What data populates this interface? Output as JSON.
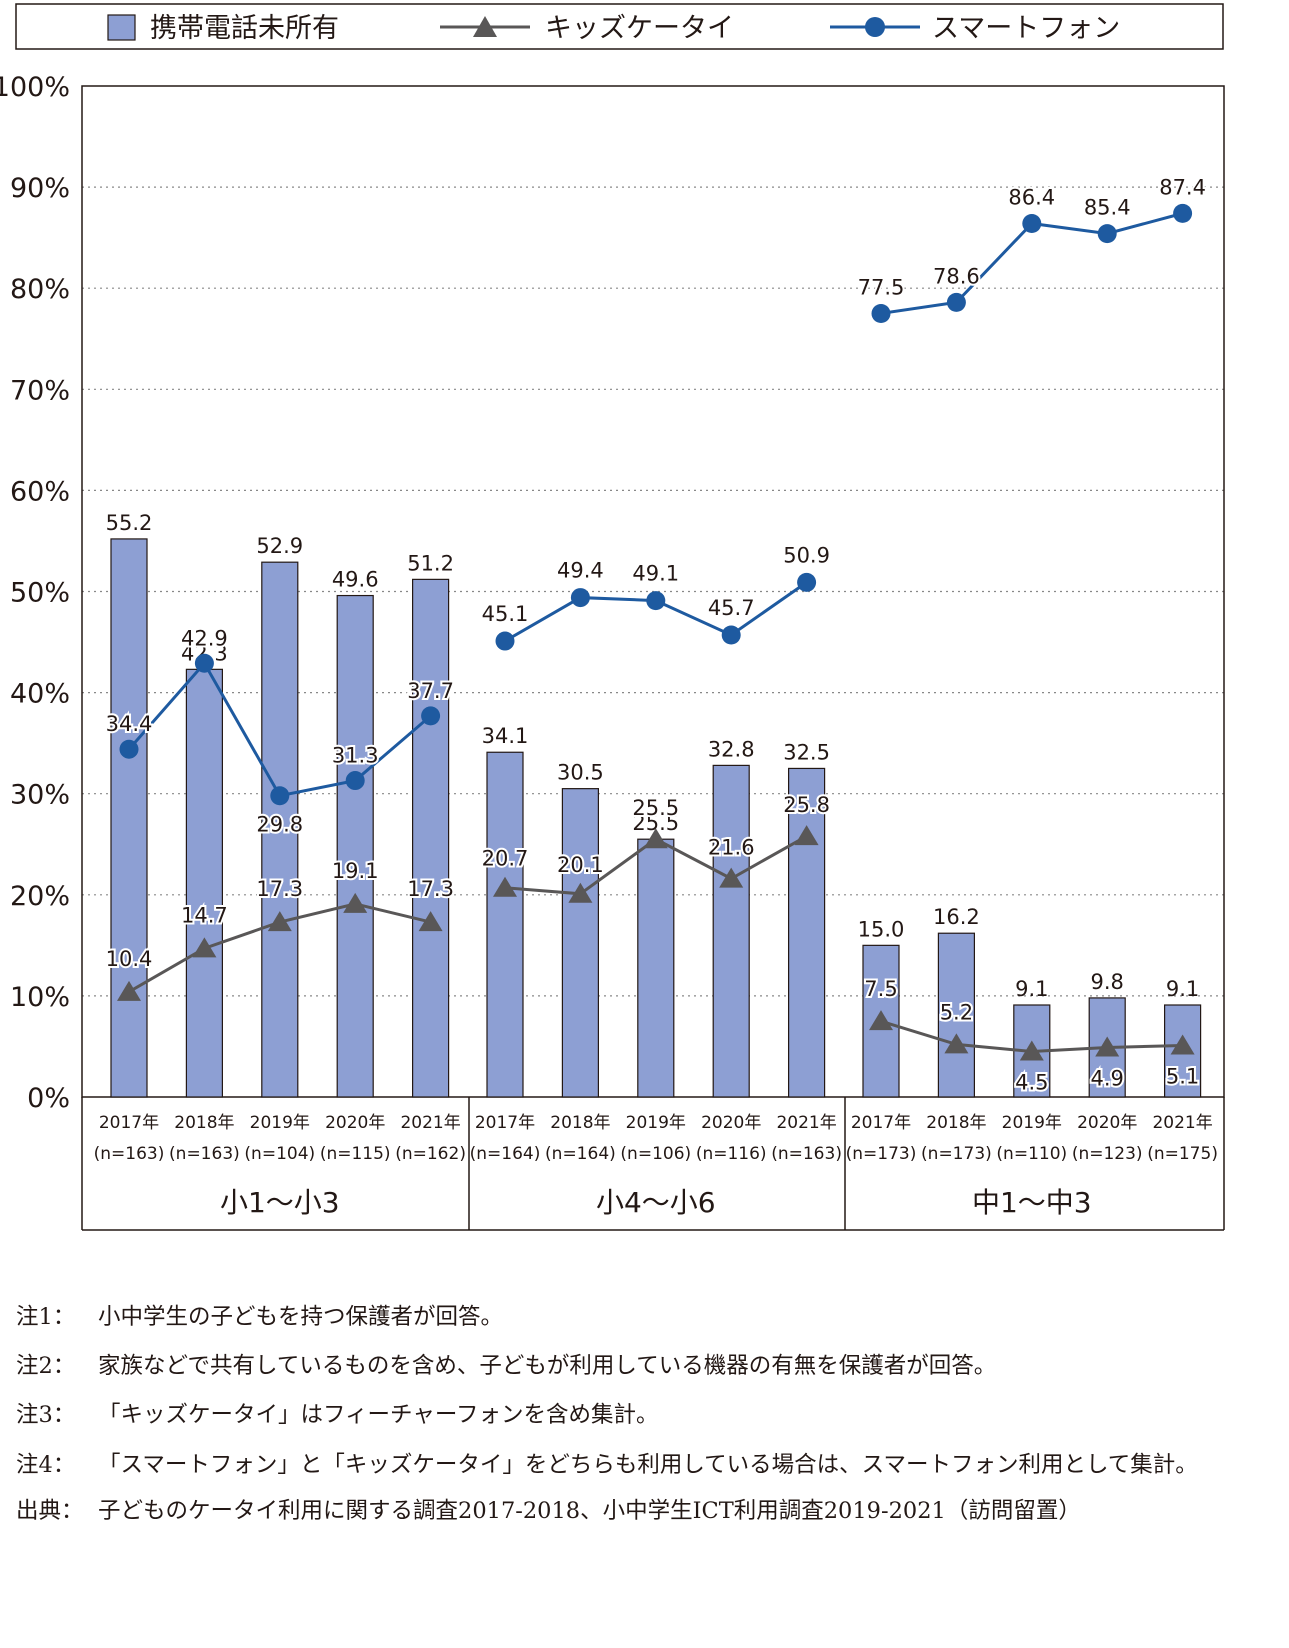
{
  "chart_data": {
    "type": "bar",
    "legend": {
      "position": "top",
      "entries": [
        {
          "key": "no_phone",
          "label": "携帯電話未所有",
          "marker": "square",
          "color": "#8d9fd3"
        },
        {
          "key": "kids_phone",
          "label": "キッズケータイ",
          "marker": "triangle",
          "color": "#595757"
        },
        {
          "key": "smartphone",
          "label": "スマートフォン",
          "marker": "circle",
          "color": "#1e5aa0"
        }
      ]
    },
    "y_axis": {
      "min": 0,
      "max": 100,
      "step": 10,
      "ticks": [
        "0%",
        "10%",
        "20%",
        "30%",
        "40%",
        "50%",
        "60%",
        "70%",
        "80%",
        "90%",
        "100%"
      ],
      "grid": "dotted"
    },
    "groups": [
      {
        "label": "小1〜小3",
        "categories": [
          {
            "year": "2017年",
            "n": "(n=163)"
          },
          {
            "year": "2018年",
            "n": "(n=163)"
          },
          {
            "year": "2019年",
            "n": "(n=104)"
          },
          {
            "year": "2020年",
            "n": "(n=115)"
          },
          {
            "year": "2021年",
            "n": "(n=162)"
          }
        ],
        "no_phone": [
          55.2,
          42.3,
          52.9,
          49.6,
          51.2
        ],
        "kids_phone": [
          10.4,
          14.7,
          17.3,
          19.1,
          17.3
        ],
        "smartphone": [
          34.4,
          42.9,
          29.8,
          31.3,
          37.7
        ]
      },
      {
        "label": "小4〜小6",
        "categories": [
          {
            "year": "2017年",
            "n": "(n=164)"
          },
          {
            "year": "2018年",
            "n": "(n=164)"
          },
          {
            "year": "2019年",
            "n": "(n=106)"
          },
          {
            "year": "2020年",
            "n": "(n=116)"
          },
          {
            "year": "2021年",
            "n": "(n=163)"
          }
        ],
        "no_phone": [
          34.1,
          30.5,
          25.5,
          32.8,
          32.5
        ],
        "kids_phone": [
          20.7,
          20.1,
          25.5,
          21.6,
          25.8
        ],
        "smartphone": [
          45.1,
          49.4,
          49.1,
          45.7,
          50.9
        ]
      },
      {
        "label": "中1〜中3",
        "categories": [
          {
            "year": "2017年",
            "n": "(n=173)"
          },
          {
            "year": "2018年",
            "n": "(n=173)"
          },
          {
            "year": "2019年",
            "n": "(n=110)"
          },
          {
            "year": "2020年",
            "n": "(n=123)"
          },
          {
            "year": "2021年",
            "n": "(n=175)"
          }
        ],
        "no_phone": [
          15.0,
          16.2,
          9.1,
          9.8,
          9.1
        ],
        "kids_phone": [
          7.5,
          5.2,
          4.5,
          4.9,
          5.1
        ],
        "smartphone": [
          77.5,
          78.6,
          86.4,
          85.4,
          87.4
        ]
      }
    ]
  },
  "notes": [
    {
      "label": "注1：",
      "text": "小中学生の子どもを持つ保護者が回答。"
    },
    {
      "label": "注2：",
      "text": "家族などで共有しているものを含め、子どもが利用している機器の有無を保護者が回答。"
    },
    {
      "label": "注3：",
      "text": "「キッズケータイ」はフィーチャーフォンを含め集計。"
    },
    {
      "label": "注4：",
      "text": "「スマートフォン」と「キッズケータイ」をどちらも利用している場合は、スマートフォン利用として集計。"
    },
    {
      "label": "出典：",
      "text": "子どものケータイ利用に関する調査2017-2018、小中学生ICT利用調査2019-2021（訪問留置）"
    }
  ]
}
